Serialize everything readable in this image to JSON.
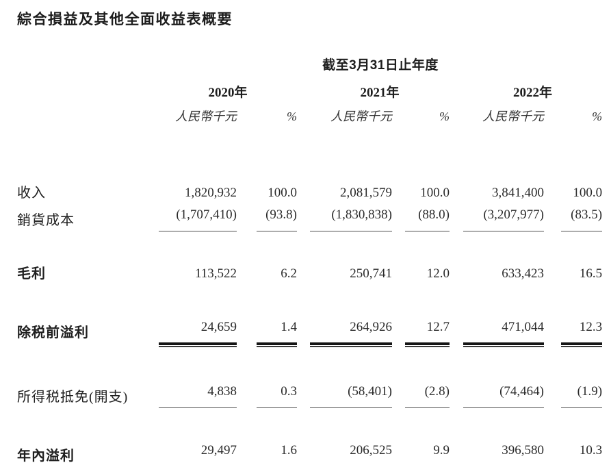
{
  "page": {
    "title": "綜合損益及其他全面收益表概要"
  },
  "table": {
    "period_header": "截至3月31日止年度",
    "year_headers": [
      "2020年",
      "2021年",
      "2022年"
    ],
    "unit_label": "人民幣千元",
    "percent_label": "%",
    "rows": [
      {
        "label": "收入",
        "values": [
          "1,820,932",
          "100.0",
          "2,081,579",
          "100.0",
          "3,841,400",
          "100.0"
        ]
      },
      {
        "label": "銷貨成本",
        "values": [
          "(1,707,410)",
          "(93.8)",
          "(1,830,838)",
          "(88.0)",
          "(3,207,977)",
          "(83.5)"
        ]
      },
      {
        "label": "毛利",
        "values": [
          "113,522",
          "6.2",
          "250,741",
          "12.0",
          "633,423",
          "16.5"
        ]
      },
      {
        "label": "除税前溢利",
        "values": [
          "24,659",
          "1.4",
          "264,926",
          "12.7",
          "471,044",
          "12.3"
        ]
      },
      {
        "label": "所得税抵免(開支)",
        "values": [
          "4,838",
          "0.3",
          "(58,401)",
          "(2.8)",
          "(74,464)",
          "(1.9)"
        ]
      },
      {
        "label": "年內溢利",
        "values": [
          "29,497",
          "1.6",
          "206,525",
          "9.9",
          "396,580",
          "10.3"
        ]
      }
    ]
  }
}
